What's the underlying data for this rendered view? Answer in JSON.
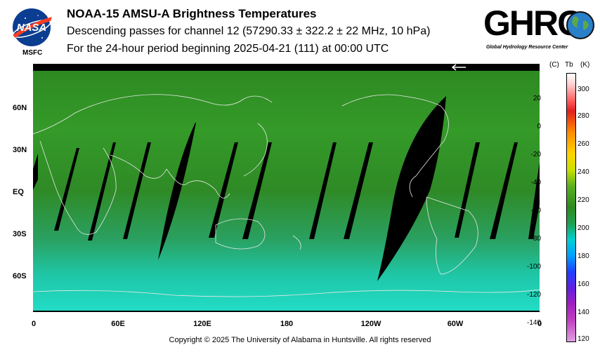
{
  "header": {
    "title": "NOAA-15 AMSU-A Brightness Temperatures",
    "subtitle": "Descending passes for channel 12 (57290.33 ± 322.2 ± 22 MHz, 10 hPa)",
    "period": "For the 24-hour period beginning 2025-04-21 (111) at 00:00 UTC"
  },
  "logos": {
    "left": {
      "label": "NASA",
      "sublabel": "MSFC",
      "icon": "nasa-meatball-icon"
    },
    "right": {
      "label": "GHRC",
      "sublabel": "Global Hydrology Resource Center",
      "icon": "ghrc-globe-icon"
    }
  },
  "map": {
    "lat_labels": [
      "60N",
      "30N",
      "EQ",
      "30S",
      "60S"
    ],
    "lon_labels": [
      "0",
      "60E",
      "120E",
      "180",
      "120W",
      "60W",
      "0"
    ],
    "arrow_icon": "left-arrow-icon"
  },
  "colorbar": {
    "header_c": "(C)",
    "header_tb": "Tb",
    "header_k": "(K)",
    "celsius_labels": [
      "20",
      "0",
      "-20",
      "-40",
      "-60",
      "-80",
      "-100",
      "-120",
      "-140"
    ],
    "kelvin_labels": [
      "300",
      "280",
      "260",
      "240",
      "220",
      "200",
      "180",
      "160",
      "140",
      "120"
    ]
  },
  "footer": {
    "copyright": "Copyright © 2025 The University of Alabama in Huntsville.  All rights reserved"
  }
}
